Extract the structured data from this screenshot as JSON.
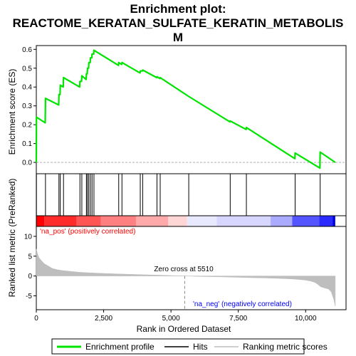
{
  "chart_data": {
    "type": "line",
    "title_lines": [
      "Enrichment plot:",
      "REACTOME_KERATAN_SULFATE_KERATIN_METABOLIS",
      "M"
    ],
    "xlabel": "Rank in Ordered Dataset",
    "es_panel": {
      "ylabel": "Enrichment score (ES)",
      "ylim": [
        -0.06,
        0.62
      ],
      "yticks": [
        0.0,
        0.1,
        0.2,
        0.3,
        0.4,
        0.5,
        0.6
      ],
      "ytick_labels": [
        "0.0",
        "0.1",
        "0.2",
        "0.3",
        "0.4",
        "0.5",
        "0.6"
      ],
      "profile_color": "#00e400",
      "series": [
        {
          "name": "Enrichment profile",
          "x": [
            0,
            5,
            330,
            340,
            830,
            840,
            880,
            890,
            1000,
            1010,
            1610,
            1620,
            1680,
            1690,
            1850,
            1860,
            1890,
            1900,
            1940,
            1950,
            2000,
            2010,
            2060,
            2070,
            2130,
            2140,
            3050,
            3060,
            3170,
            3180,
            3850,
            3860,
            3940,
            3950,
            4470,
            4480,
            4590,
            4600,
            5660,
            7190,
            7200,
            7790,
            7800,
            9600,
            9610,
            10530,
            10540,
            11100
          ],
          "y": [
            0.0,
            0.24,
            0.21,
            0.34,
            0.305,
            0.36,
            0.36,
            0.41,
            0.4,
            0.45,
            0.4,
            0.43,
            0.43,
            0.46,
            0.44,
            0.47,
            0.47,
            0.5,
            0.5,
            0.53,
            0.53,
            0.555,
            0.555,
            0.575,
            0.575,
            0.595,
            0.515,
            0.53,
            0.52,
            0.53,
            0.475,
            0.485,
            0.485,
            0.49,
            0.45,
            0.455,
            0.445,
            0.45,
            0.35,
            0.215,
            0.22,
            0.175,
            0.185,
            0.02,
            0.05,
            -0.03,
            0.055,
            0.0
          ]
        }
      ]
    },
    "hits": {
      "legend": "Hits",
      "x": [
        5,
        340,
        840,
        890,
        1010,
        1620,
        1690,
        1860,
        1900,
        1950,
        2010,
        2070,
        2140,
        3060,
        3180,
        3860,
        3950,
        4480,
        4600,
        5660,
        7200,
        7800,
        9610,
        10540
      ]
    },
    "colorbar": {
      "colors": [
        "#ff0000",
        "#ff2b2b",
        "#ff5555",
        "#ff8080",
        "#ffaaaa",
        "#ffd6d6",
        "#e8e8ff",
        "#d6d6ff",
        "#aaaaff",
        "#5555ff",
        "#2b2bff",
        "#0000e6"
      ],
      "breaks": [
        0,
        300,
        1500,
        2400,
        3700,
        4900,
        5600,
        6700,
        8700,
        9500,
        10500,
        11000,
        11100
      ]
    },
    "metric_panel": {
      "ylabel": "Ranked list metric (PreRanked)",
      "ylim": [
        -8.5,
        12.5
      ],
      "yticks": [
        -5,
        0,
        5,
        10
      ],
      "ytick_labels": [
        "-5",
        "0",
        "5",
        "10"
      ],
      "x": [
        0,
        50,
        100,
        200,
        300,
        450,
        600,
        800,
        1000,
        1300,
        1600,
        2000,
        2500,
        3000,
        3500,
        4000,
        4500,
        5000,
        5510,
        6000,
        6500,
        7000,
        7500,
        8000,
        8500,
        9000,
        9500,
        9800,
        10000,
        10200,
        10350,
        10450,
        10550,
        10700,
        10850,
        10950,
        11000,
        11050,
        11100
      ],
      "y": [
        6.8,
        5.5,
        4.6,
        3.8,
        3.1,
        2.5,
        1.9,
        1.55,
        1.35,
        1.15,
        0.95,
        0.8,
        0.65,
        0.52,
        0.42,
        0.32,
        0.22,
        0.12,
        0.0,
        -0.1,
        -0.18,
        -0.25,
        -0.33,
        -0.42,
        -0.5,
        -0.6,
        -0.75,
        -0.9,
        -1.05,
        -1.3,
        -1.65,
        -2.1,
        -2.7,
        -3.0,
        -3.3,
        -4.0,
        -5.0,
        -6.0,
        -7.6
      ],
      "color": "#bebebe",
      "zero_cross": 5510,
      "zero_cross_label": "Zero cross at 5510",
      "pos_label": "'na_pos' (positively correlated)",
      "pos_color": "#ff0000",
      "neg_label": "'na_neg' (negatively correlated)",
      "neg_color": "#0000ff"
    },
    "xlim": [
      0,
      11500
    ],
    "xticks": [
      0,
      2500,
      5000,
      7500,
      10000
    ],
    "xtick_labels": [
      "0",
      "2,500",
      "5,000",
      "7,500",
      "10,000"
    ],
    "legend": {
      "entries": [
        "Enrichment profile",
        "Hits",
        "Ranking metric scores"
      ],
      "colors": [
        "#00e400",
        "#000000",
        "#bebebe"
      ]
    }
  }
}
